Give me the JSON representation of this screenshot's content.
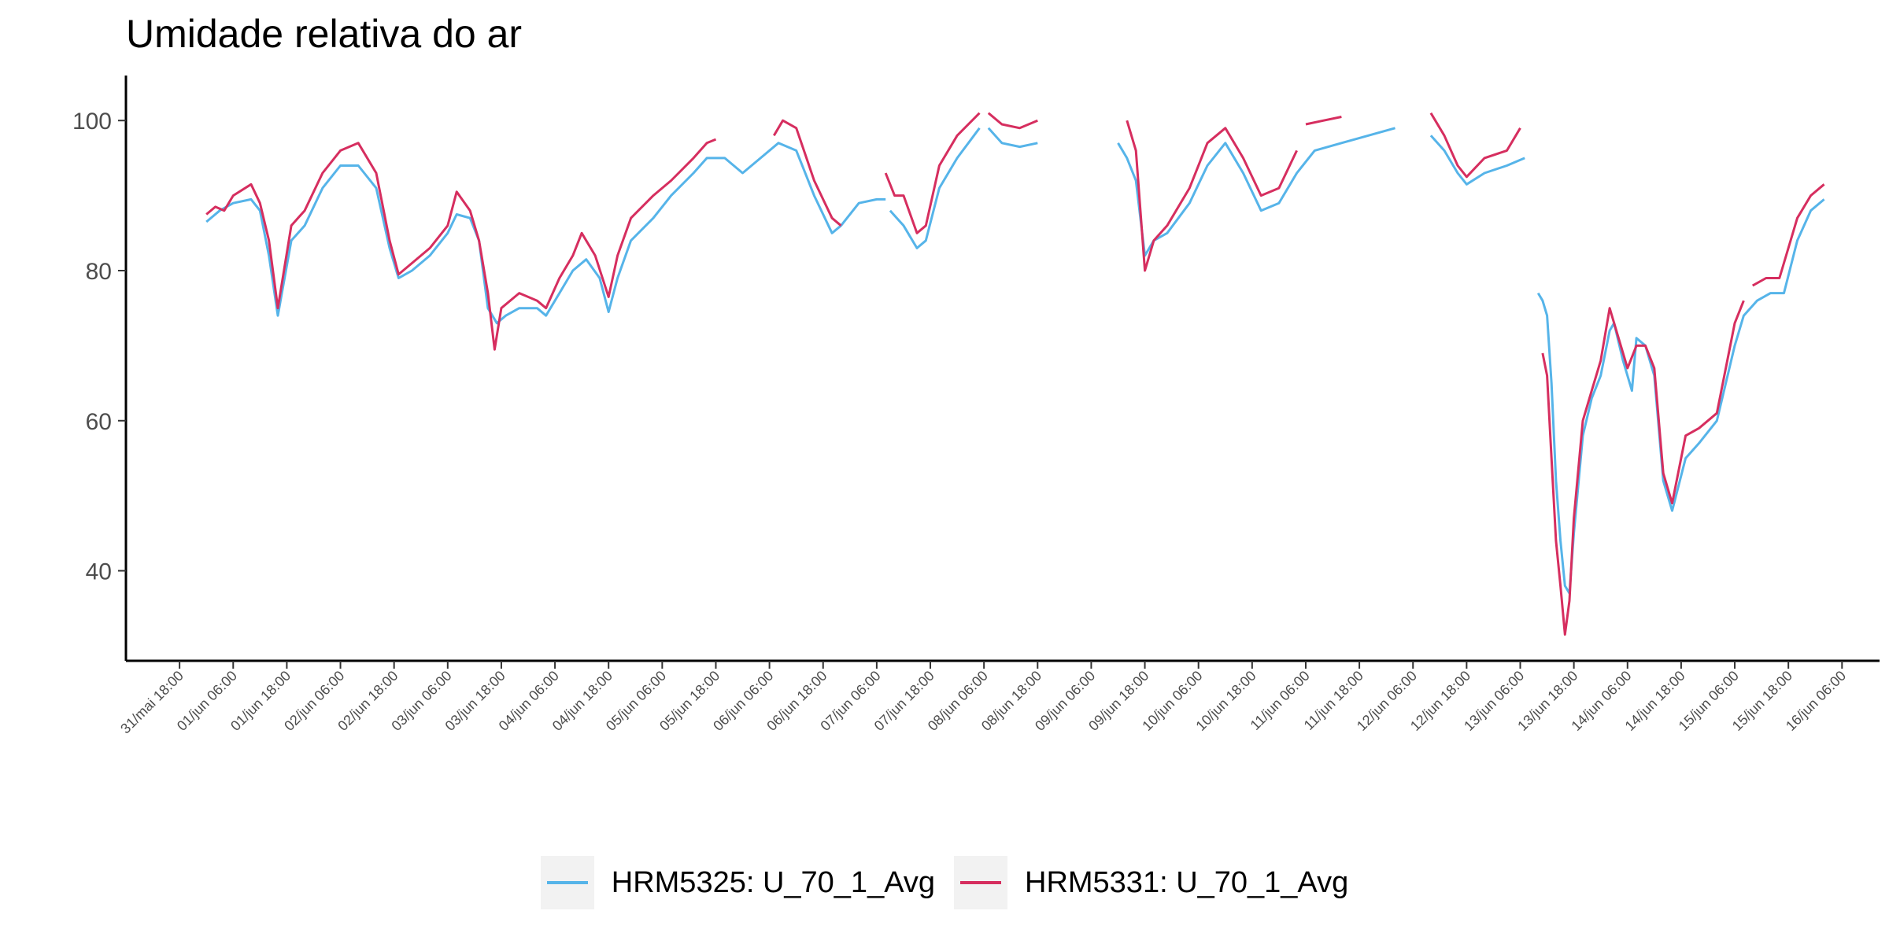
{
  "chart_data": {
    "type": "line",
    "title": "Umidade relativa do ar",
    "xlabel": "",
    "ylabel": "",
    "ylim": [
      28,
      106
    ],
    "xlim_days": [
      -0.75,
      15.6
    ],
    "y_ticks": [
      40,
      60,
      80,
      100
    ],
    "x_ticks": [
      "31/mai 18:00",
      "01/jun 06:00",
      "01/jun 18:00",
      "02/jun 06:00",
      "02/jun 18:00",
      "03/jun 06:00",
      "03/jun 18:00",
      "04/jun 06:00",
      "04/jun 18:00",
      "05/jun 06:00",
      "05/jun 18:00",
      "06/jun 06:00",
      "06/jun 18:00",
      "07/jun 06:00",
      "07/jun 18:00",
      "08/jun 06:00",
      "08/jun 18:00",
      "09/jun 06:00",
      "09/jun 18:00",
      "10/jun 06:00",
      "10/jun 18:00",
      "11/jun 06:00",
      "11/jun 18:00",
      "12/jun 06:00",
      "12/jun 18:00",
      "13/jun 06:00",
      "13/jun 18:00",
      "14/jun 06:00",
      "14/jun 18:00",
      "15/jun 06:00",
      "15/jun 18:00",
      "16/jun 06:00"
    ],
    "grid": false,
    "legend_position": "bottom",
    "series": [
      {
        "name": "HRM5325: U_70_1_Avg",
        "color": "#56b4e9",
        "segments": [
          [
            [
              "01/jun 00:00",
              86.5
            ],
            [
              "01/jun 03:00",
              88
            ],
            [
              "01/jun 06:00",
              89
            ],
            [
              "01/jun 10:00",
              89.5
            ],
            [
              "01/jun 12:00",
              88
            ],
            [
              "01/jun 14:00",
              82
            ],
            [
              "01/jun 16:00",
              74
            ],
            [
              "01/jun 19:00",
              84
            ],
            [
              "01/jun 22:00",
              86
            ],
            [
              "02/jun 02:00",
              91
            ],
            [
              "02/jun 06:00",
              94
            ],
            [
              "02/jun 10:00",
              94
            ],
            [
              "02/jun 14:00",
              91
            ],
            [
              "02/jun 17:00",
              83
            ],
            [
              "02/jun 19:00",
              79
            ],
            [
              "02/jun 22:00",
              80
            ],
            [
              "03/jun 02:00",
              82
            ],
            [
              "03/jun 06:00",
              85
            ],
            [
              "03/jun 08:00",
              87.5
            ],
            [
              "03/jun 11:00",
              87
            ],
            [
              "03/jun 13:00",
              84
            ],
            [
              "03/jun 15:00",
              75
            ],
            [
              "03/jun 17:00",
              73
            ],
            [
              "03/jun 19:00",
              74
            ],
            [
              "03/jun 22:00",
              75
            ],
            [
              "04/jun 02:00",
              75
            ],
            [
              "04/jun 04:00",
              74
            ],
            [
              "04/jun 07:00",
              77
            ],
            [
              "04/jun 10:00",
              80
            ],
            [
              "04/jun 13:00",
              81.5
            ],
            [
              "04/jun 16:00",
              79
            ],
            [
              "04/jun 18:00",
              74.5
            ],
            [
              "04/jun 20:00",
              79
            ],
            [
              "04/jun 23:00",
              84
            ],
            [
              "05/jun 04:00",
              87
            ],
            [
              "05/jun 08:00",
              90
            ],
            [
              "05/jun 13:00",
              93
            ],
            [
              "05/jun 16:00",
              95
            ],
            [
              "05/jun 20:00",
              95
            ],
            [
              "06/jun 00:00",
              93
            ],
            [
              "06/jun 04:00",
              95
            ],
            [
              "06/jun 08:00",
              97
            ],
            [
              "06/jun 12:00",
              96
            ],
            [
              "06/jun 16:00",
              90
            ],
            [
              "06/jun 20:00",
              85
            ],
            [
              "06/jun 22:00",
              86
            ],
            [
              "07/jun 02:00",
              89
            ],
            [
              "07/jun 06:00",
              89.5
            ],
            [
              "07/jun 08:00",
              89.5
            ]
          ],
          [
            [
              "07/jun 09:00",
              88
            ],
            [
              "07/jun 12:00",
              86
            ],
            [
              "07/jun 15:00",
              83
            ],
            [
              "07/jun 17:00",
              84
            ],
            [
              "07/jun 20:00",
              91
            ],
            [
              "08/jun 00:00",
              95
            ],
            [
              "08/jun 05:00",
              99
            ]
          ],
          [
            [
              "08/jun 07:00",
              99
            ],
            [
              "08/jun 10:00",
              97
            ],
            [
              "08/jun 14:00",
              96.5
            ],
            [
              "08/jun 18:00",
              97
            ]
          ],
          [
            [
              "09/jun 12:00",
              97
            ],
            [
              "09/jun 14:00",
              95
            ],
            [
              "09/jun 16:00",
              92
            ],
            [
              "09/jun 18:00",
              82
            ],
            [
              "09/jun 20:00",
              84
            ],
            [
              "09/jun 23:00",
              85
            ],
            [
              "10/jun 04:00",
              89
            ],
            [
              "10/jun 08:00",
              94
            ],
            [
              "10/jun 12:00",
              97
            ],
            [
              "10/jun 16:00",
              93
            ],
            [
              "10/jun 20:00",
              88
            ],
            [
              "11/jun 00:00",
              89
            ],
            [
              "11/jun 04:00",
              93
            ],
            [
              "11/jun 08:00",
              96
            ],
            [
              "11/jun 14:00",
              97
            ],
            [
              "11/jun 20:00",
              98
            ],
            [
              "12/jun 02:00",
              99
            ]
          ],
          [
            [
              "12/jun 10:00",
              98
            ],
            [
              "12/jun 13:00",
              96
            ],
            [
              "12/jun 16:00",
              93
            ],
            [
              "12/jun 18:00",
              91.5
            ],
            [
              "12/jun 22:00",
              93
            ],
            [
              "13/jun 03:00",
              94
            ],
            [
              "13/jun 07:00",
              95
            ]
          ],
          [
            [
              "13/jun 10:00",
              77
            ],
            [
              "13/jun 11:00",
              76
            ],
            [
              "13/jun 12:00",
              74
            ],
            [
              "13/jun 13:00",
              65
            ],
            [
              "13/jun 14:00",
              52
            ],
            [
              "13/jun 15:00",
              44
            ],
            [
              "13/jun 16:00",
              38
            ],
            [
              "13/jun 17:00",
              37
            ],
            [
              "13/jun 18:00",
              45
            ],
            [
              "13/jun 20:00",
              58
            ],
            [
              "13/jun 22:00",
              63
            ],
            [
              "14/jun 00:00",
              66
            ],
            [
              "14/jun 02:00",
              72
            ],
            [
              "14/jun 03:00",
              73
            ],
            [
              "14/jun 05:00",
              68
            ],
            [
              "14/jun 07:00",
              64
            ],
            [
              "14/jun 08:00",
              71
            ],
            [
              "14/jun 10:00",
              70
            ],
            [
              "14/jun 12:00",
              66
            ],
            [
              "14/jun 14:00",
              52
            ],
            [
              "14/jun 16:00",
              48
            ],
            [
              "14/jun 19:00",
              55
            ],
            [
              "14/jun 22:00",
              57
            ],
            [
              "15/jun 02:00",
              60
            ],
            [
              "15/jun 06:00",
              70
            ],
            [
              "15/jun 08:00",
              74
            ],
            [
              "15/jun 11:00",
              76
            ],
            [
              "15/jun 14:00",
              77
            ],
            [
              "15/jun 17:00",
              77
            ],
            [
              "15/jun 20:00",
              84
            ],
            [
              "15/jun 23:00",
              88
            ],
            [
              "16/jun 02:00",
              89.5
            ]
          ]
        ]
      },
      {
        "name": "HRM5331: U_70_1_Avg",
        "color": "#d62e5f",
        "segments": [
          [
            [
              "01/jun 00:00",
              87.5
            ],
            [
              "01/jun 02:00",
              88.5
            ],
            [
              "01/jun 04:00",
              88
            ],
            [
              "01/jun 06:00",
              90
            ],
            [
              "01/jun 10:00",
              91.5
            ],
            [
              "01/jun 12:00",
              89
            ],
            [
              "01/jun 14:00",
              84
            ],
            [
              "01/jun 16:00",
              75
            ],
            [
              "01/jun 19:00",
              86
            ],
            [
              "01/jun 22:00",
              88
            ],
            [
              "02/jun 02:00",
              93
            ],
            [
              "02/jun 06:00",
              96
            ],
            [
              "02/jun 10:00",
              97
            ],
            [
              "02/jun 14:00",
              93
            ],
            [
              "02/jun 17:00",
              84
            ],
            [
              "02/jun 19:00",
              79.5
            ],
            [
              "02/jun 22:00",
              81
            ],
            [
              "03/jun 02:00",
              83
            ],
            [
              "03/jun 06:00",
              86
            ],
            [
              "03/jun 08:00",
              90.5
            ],
            [
              "03/jun 11:00",
              88
            ],
            [
              "03/jun 13:00",
              84
            ],
            [
              "03/jun 15:00",
              77
            ],
            [
              "03/jun 16:30",
              69.5
            ],
            [
              "03/jun 18:00",
              75
            ],
            [
              "03/jun 22:00",
              77
            ],
            [
              "04/jun 02:00",
              76
            ],
            [
              "04/jun 04:00",
              75
            ],
            [
              "04/jun 07:00",
              79
            ],
            [
              "04/jun 10:00",
              82
            ],
            [
              "04/jun 12:00",
              85
            ],
            [
              "04/jun 15:00",
              82
            ],
            [
              "04/jun 18:00",
              76.5
            ],
            [
              "04/jun 20:00",
              82
            ],
            [
              "04/jun 23:00",
              87
            ],
            [
              "05/jun 04:00",
              90
            ],
            [
              "05/jun 08:00",
              92
            ],
            [
              "05/jun 13:00",
              95
            ],
            [
              "05/jun 16:00",
              97
            ],
            [
              "05/jun 18:00",
              97.5
            ]
          ],
          [
            [
              "06/jun 07:00",
              98
            ],
            [
              "06/jun 09:00",
              100
            ],
            [
              "06/jun 12:00",
              99
            ],
            [
              "06/jun 16:00",
              92
            ],
            [
              "06/jun 20:00",
              87
            ],
            [
              "06/jun 22:00",
              86
            ]
          ],
          [
            [
              "07/jun 08:00",
              93
            ],
            [
              "07/jun 10:00",
              90
            ],
            [
              "07/jun 12:00",
              90
            ],
            [
              "07/jun 15:00",
              85
            ],
            [
              "07/jun 17:00",
              86
            ],
            [
              "07/jun 20:00",
              94
            ],
            [
              "08/jun 00:00",
              98
            ],
            [
              "08/jun 05:00",
              101
            ]
          ],
          [
            [
              "08/jun 07:00",
              101
            ],
            [
              "08/jun 10:00",
              99.5
            ],
            [
              "08/jun 14:00",
              99
            ],
            [
              "08/jun 18:00",
              100
            ]
          ],
          [
            [
              "09/jun 14:00",
              100
            ],
            [
              "09/jun 16:00",
              96
            ],
            [
              "09/jun 18:00",
              80
            ],
            [
              "09/jun 20:00",
              84
            ],
            [
              "09/jun 23:00",
              86
            ],
            [
              "10/jun 04:00",
              91
            ],
            [
              "10/jun 08:00",
              97
            ],
            [
              "10/jun 12:00",
              99
            ],
            [
              "10/jun 16:00",
              95
            ],
            [
              "10/jun 20:00",
              90
            ],
            [
              "11/jun 00:00",
              91
            ],
            [
              "11/jun 04:00",
              96
            ]
          ],
          [
            [
              "11/jun 06:00",
              99.5
            ],
            [
              "11/jun 10:00",
              100
            ],
            [
              "11/jun 14:00",
              100.5
            ]
          ],
          [
            [
              "12/jun 10:00",
              101
            ],
            [
              "12/jun 13:00",
              98
            ],
            [
              "12/jun 16:00",
              94
            ],
            [
              "12/jun 18:00",
              92.5
            ],
            [
              "12/jun 22:00",
              95
            ],
            [
              "13/jun 03:00",
              96
            ],
            [
              "13/jun 06:00",
              99
            ]
          ],
          [
            [
              "13/jun 11:00",
              69
            ],
            [
              "13/jun 12:00",
              66
            ],
            [
              "13/jun 13:00",
              55
            ],
            [
              "13/jun 14:00",
              44
            ],
            [
              "13/jun 15:00",
              38
            ],
            [
              "13/jun 16:00",
              31.5
            ],
            [
              "13/jun 17:00",
              36
            ],
            [
              "13/jun 18:00",
              47
            ],
            [
              "13/jun 20:00",
              60
            ],
            [
              "13/jun 22:00",
              64
            ],
            [
              "14/jun 00:00",
              68
            ],
            [
              "14/jun 02:00",
              75
            ],
            [
              "14/jun 04:00",
              71
            ],
            [
              "14/jun 06:00",
              67
            ],
            [
              "14/jun 08:00",
              70
            ],
            [
              "14/jun 10:00",
              70
            ],
            [
              "14/jun 12:00",
              67
            ],
            [
              "14/jun 14:00",
              53
            ],
            [
              "14/jun 16:00",
              49
            ],
            [
              "14/jun 19:00",
              58
            ],
            [
              "14/jun 22:00",
              59
            ],
            [
              "15/jun 02:00",
              61
            ],
            [
              "15/jun 06:00",
              73
            ],
            [
              "15/jun 08:00",
              76
            ]
          ],
          [
            [
              "15/jun 10:00",
              78
            ],
            [
              "15/jun 13:00",
              79
            ],
            [
              "15/jun 16:00",
              79
            ],
            [
              "15/jun 20:00",
              87
            ],
            [
              "15/jun 23:00",
              90
            ],
            [
              "16/jun 02:00",
              91.5
            ]
          ]
        ]
      }
    ]
  }
}
